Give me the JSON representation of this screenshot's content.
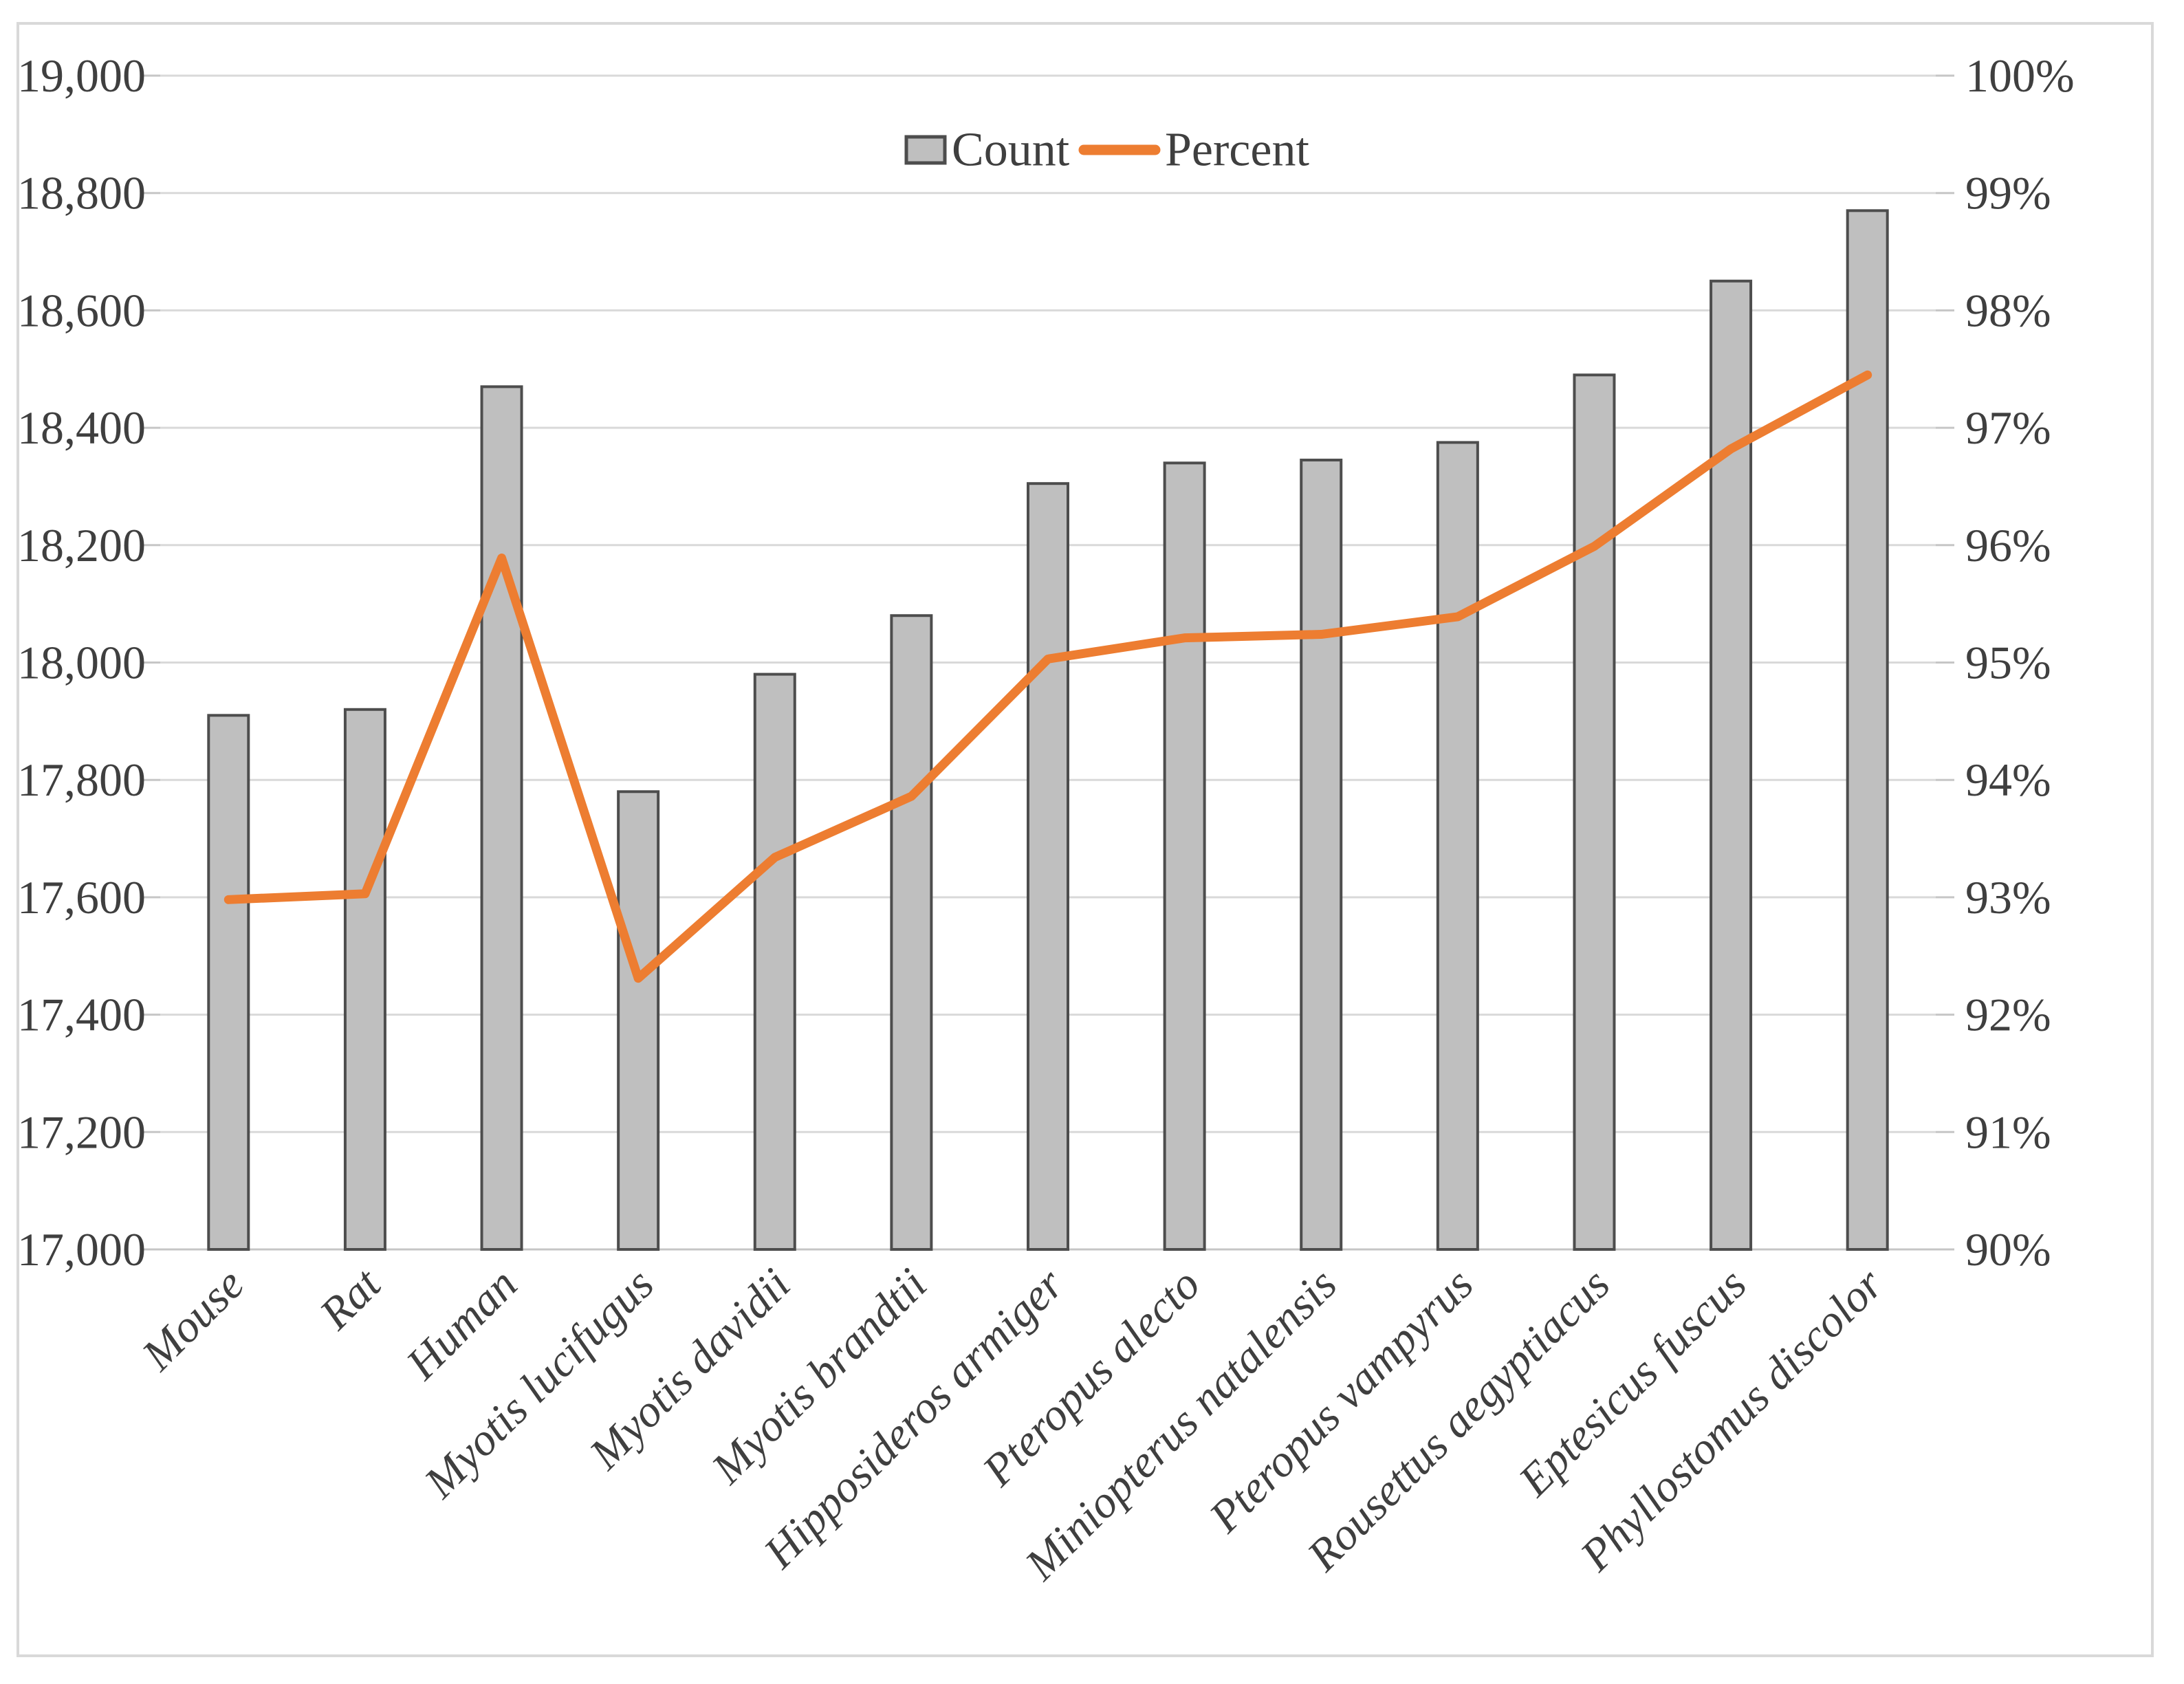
{
  "chart_data": {
    "type": "combo-bar-line",
    "title": "",
    "categories": [
      "Mouse",
      "Rat",
      "Human",
      "Myotis lucifugus",
      "Myotis davidii",
      "Myotis brandtii",
      "Hipposideros armiger",
      "Pteropus alecto",
      "Miniopterus natalensis",
      "Pteropus vampyrus",
      "Rousettus aegyptiacus",
      "Eptesicus fuscus",
      "Phyllostomus discolor"
    ],
    "series": [
      {
        "name": "Count",
        "type": "bar",
        "axis": "left",
        "values": [
          17910,
          17920,
          18470,
          17780,
          17980,
          18080,
          18305,
          18340,
          18345,
          18375,
          18490,
          18650,
          18770
        ],
        "fill": "#bfbfbf",
        "stroke": "#4d4d4d"
      },
      {
        "name": "Percent",
        "type": "line",
        "axis": "right",
        "values": [
          92.98,
          93.03,
          95.89,
          92.31,
          93.34,
          93.86,
          95.03,
          95.21,
          95.24,
          95.39,
          95.99,
          96.82,
          97.45
        ],
        "color": "#ed7d31"
      }
    ],
    "left_axis": {
      "min": 17000,
      "max": 19000,
      "step": 200,
      "tick_labels": [
        "19,000",
        "18,800",
        "18,600",
        "18,400",
        "18,200",
        "18,000",
        "17,800",
        "17,600",
        "17,400",
        "17,200",
        "17,000"
      ]
    },
    "right_axis": {
      "min": 90,
      "max": 100,
      "step": 1,
      "tick_labels": [
        "100%",
        "99%",
        "98%",
        "97%",
        "96%",
        "95%",
        "94%",
        "93%",
        "92%",
        "91%",
        "90%"
      ]
    },
    "legend": {
      "items": [
        {
          "label": "Count",
          "swatch": "bar"
        },
        {
          "label": "Percent",
          "swatch": "line"
        }
      ],
      "position": "top-center"
    },
    "grid": true,
    "colors": {
      "bar_fill": "#bfbfbf",
      "bar_stroke": "#4d4d4d",
      "line": "#ed7d31",
      "gridline": "#d9d9d9",
      "baseline": "#c6c6c6",
      "tick": "#c6c6c6",
      "text": "#3f3f3f",
      "frame": "#d9d9d9",
      "background": "#ffffff"
    }
  }
}
